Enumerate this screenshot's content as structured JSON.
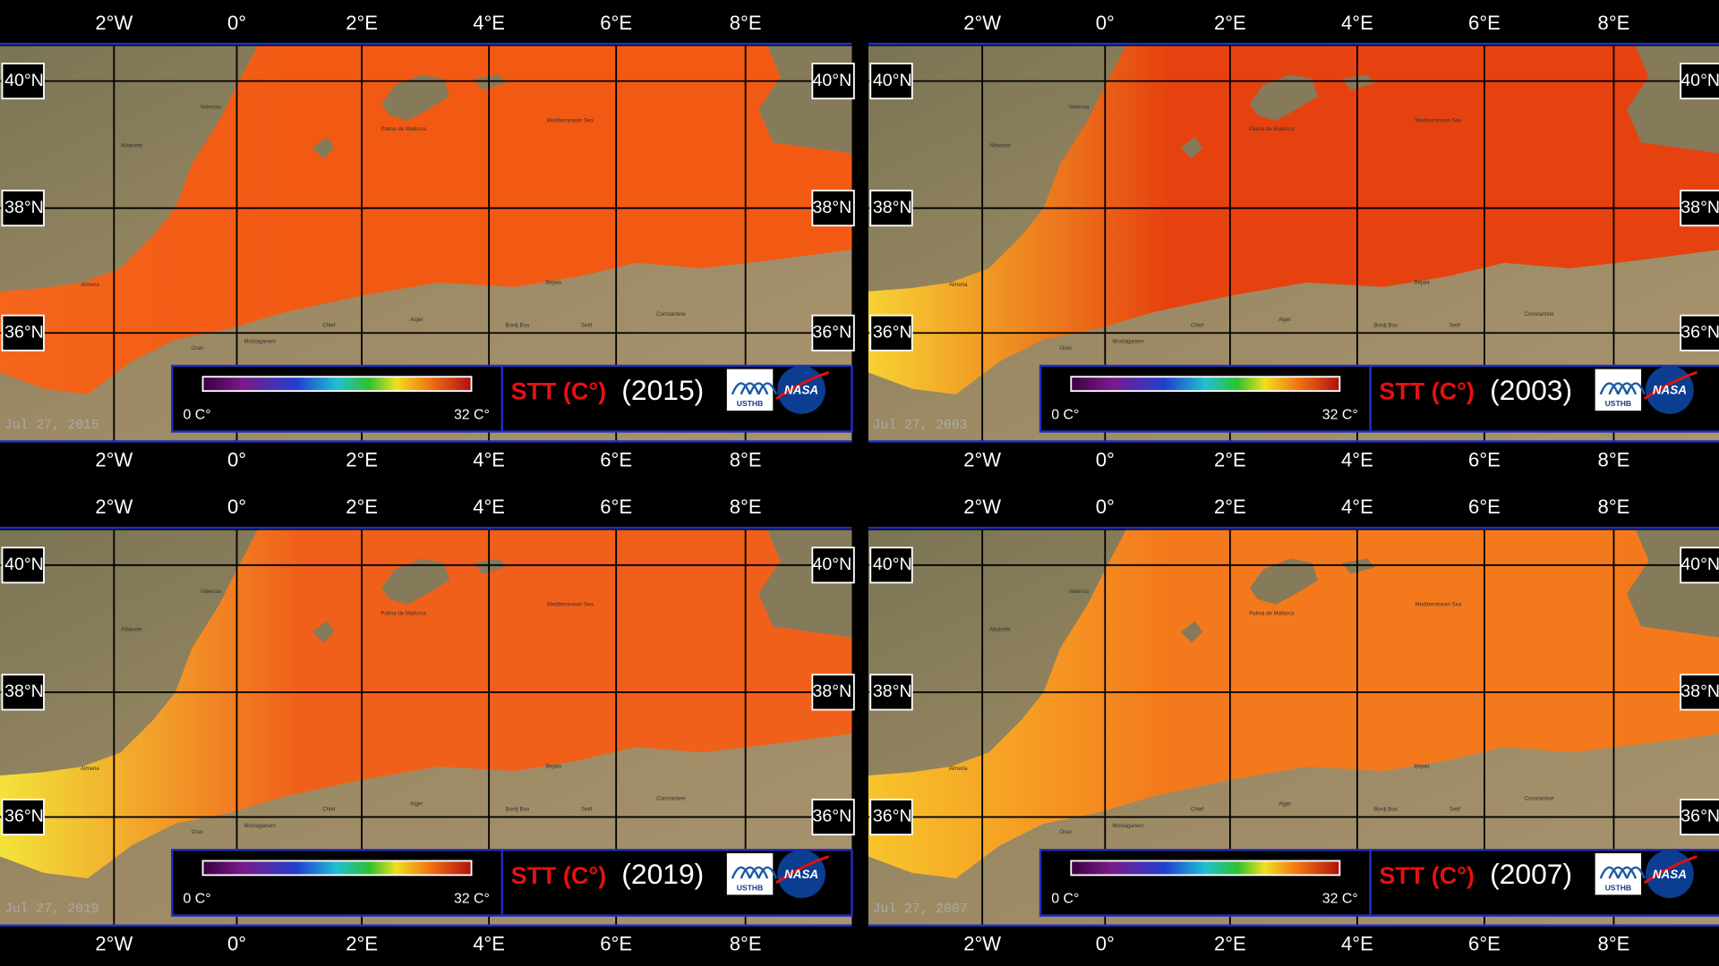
{
  "panels": [
    {
      "year": "(2015)",
      "date": "Jul 27, 2015",
      "sea_colors": [
        "#f5651c",
        "#f25a14"
      ]
    },
    {
      "year": "(2003)",
      "date": "Jul 27, 2003",
      "sea_colors": [
        "#f7d233",
        "#e6420f"
      ]
    },
    {
      "year": "(2019)",
      "date": "Jul 27, 2019",
      "sea_colors": [
        "#f3e33a",
        "#f0601a"
      ]
    },
    {
      "year": "(2007)",
      "date": "Jul 27, 2007",
      "sea_colors": [
        "#f7c52c",
        "#f4791c"
      ]
    }
  ],
  "lon_labels": [
    "2°W",
    "0°",
    "2°E",
    "4°E",
    "6°E",
    "8°E"
  ],
  "lat_labels": [
    "40°N",
    "38°N",
    "36°N"
  ],
  "legend": {
    "title": "STT (C°)",
    "min": "0 C°",
    "max": "32 C°"
  },
  "logos": {
    "usthb": "USTHB",
    "nasa": "NASA"
  },
  "place_labels": [
    "Valencia",
    "Palma de Mallorca",
    "Mediterranean Sea",
    "Alger",
    "Mostaganem",
    "Oran",
    "Chlef",
    "Bejaia",
    "Setif",
    "Constantine",
    "Bordj Bou",
    "Almeria",
    "Albacete"
  ]
}
